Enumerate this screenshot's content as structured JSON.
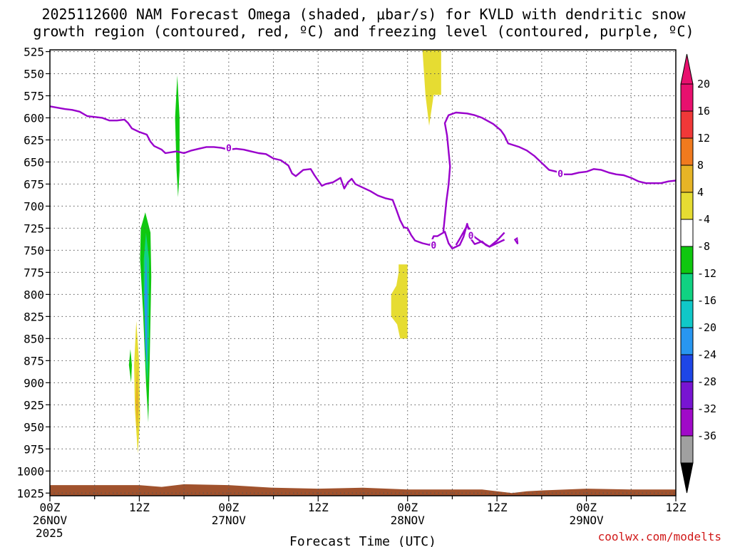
{
  "chart_data": {
    "type": "heatmap",
    "title_line1": "2025112600 NAM Forecast Omega (shaded, μbar/s) for KVLD with dendritic snow",
    "title_line2": "growth region (contoured, red, ºC) and freezing level (contoured, purple, ºC)",
    "xlabel": "Forecast Time (UTC)",
    "credit": "coolwx.com/modelts",
    "x_hours_range": [
      0,
      84
    ],
    "y_range_mb": [
      1028,
      523
    ],
    "y_ticks": [
      {
        "value": 525,
        "label": "525"
      },
      {
        "value": 550,
        "label": "550"
      },
      {
        "value": 575,
        "label": "575"
      },
      {
        "value": 600,
        "label": "600"
      },
      {
        "value": 625,
        "label": "625"
      },
      {
        "value": 650,
        "label": "650"
      },
      {
        "value": 675,
        "label": "675"
      },
      {
        "value": 700,
        "label": "700"
      },
      {
        "value": 725,
        "label": "725"
      },
      {
        "value": 750,
        "label": "750"
      },
      {
        "value": 775,
        "label": "775"
      },
      {
        "value": 800,
        "label": "800"
      },
      {
        "value": 825,
        "label": "825"
      },
      {
        "value": 850,
        "label": "850"
      },
      {
        "value": 875,
        "label": "875"
      },
      {
        "value": 900,
        "label": "900"
      },
      {
        "value": 925,
        "label": "925"
      },
      {
        "value": 950,
        "label": "950"
      },
      {
        "value": 975,
        "label": "975"
      },
      {
        "value": 1000,
        "label": "1000"
      },
      {
        "value": 1025,
        "label": "1025"
      }
    ],
    "x_ticks": [
      {
        "hour": 0,
        "line1": "00Z",
        "line2": "26NOV",
        "line3": "2025"
      },
      {
        "hour": 12,
        "line1": "12Z"
      },
      {
        "hour": 24,
        "line1": "00Z",
        "line2": "27NOV"
      },
      {
        "hour": 36,
        "line1": "12Z"
      },
      {
        "hour": 48,
        "line1": "00Z",
        "line2": "28NOV"
      },
      {
        "hour": 60,
        "line1": "12Z"
      },
      {
        "hour": 72,
        "line1": "00Z",
        "line2": "29NOV"
      },
      {
        "hour": 84,
        "line1": "12Z"
      }
    ],
    "colorbar": [
      {
        "label": "20",
        "color": "#e8106e"
      },
      {
        "label": "16",
        "color": "#f03838"
      },
      {
        "label": "12",
        "color": "#f07a1e"
      },
      {
        "label": "8",
        "color": "#e6b426"
      },
      {
        "label": "4",
        "color": "#e6dc32"
      },
      {
        "label": "-4",
        "color": "#ffffff"
      },
      {
        "label": "-8",
        "color": "#0fc80f"
      },
      {
        "label": "-12",
        "color": "#10d282"
      },
      {
        "label": "-16",
        "color": "#10c8c8"
      },
      {
        "label": "-20",
        "color": "#2896f0"
      },
      {
        "label": "-24",
        "color": "#1e46e6"
      },
      {
        "label": "-28",
        "color": "#7814d2"
      },
      {
        "label": "-32",
        "color": "#a00ac8"
      },
      {
        "label": "-36",
        "color": "#a0a0a0"
      }
    ],
    "colorbar_bottom_color": "#000000",
    "freezing_level_color": "#9900cc",
    "freezing_level_label": "0",
    "freezing_level_main": [
      [
        0,
        587
      ],
      [
        2,
        590
      ],
      [
        3,
        591
      ],
      [
        4,
        593
      ],
      [
        5,
        598
      ],
      [
        6,
        599
      ],
      [
        7,
        600
      ],
      [
        8,
        603
      ],
      [
        9,
        603
      ],
      [
        10,
        602
      ],
      [
        10.5,
        606
      ],
      [
        11,
        612
      ],
      [
        12,
        616
      ],
      [
        13,
        619
      ],
      [
        13.5,
        627
      ],
      [
        14,
        632
      ],
      [
        15,
        636
      ],
      [
        15.5,
        640
      ],
      [
        17,
        638
      ],
      [
        18,
        640
      ],
      [
        19,
        637
      ],
      [
        20,
        635
      ],
      [
        21,
        633
      ],
      [
        22,
        633
      ],
      [
        23,
        634
      ],
      [
        24,
        636
      ],
      [
        25,
        635
      ],
      [
        26,
        636
      ],
      [
        27,
        638
      ],
      [
        28,
        640
      ],
      [
        29,
        641
      ],
      [
        30,
        646
      ],
      [
        31,
        648
      ],
      [
        32,
        654
      ],
      [
        32.5,
        663
      ],
      [
        33,
        666
      ],
      [
        34,
        659
      ],
      [
        35,
        658
      ],
      [
        35.5,
        665
      ],
      [
        36,
        671
      ],
      [
        36.5,
        677
      ],
      [
        37,
        675
      ],
      [
        38,
        673
      ],
      [
        39,
        668
      ],
      [
        39.5,
        680
      ],
      [
        40,
        673
      ],
      [
        40.5,
        669
      ],
      [
        41,
        675
      ],
      [
        42,
        679
      ],
      [
        43,
        683
      ],
      [
        44,
        688
      ],
      [
        45,
        691
      ],
      [
        46,
        693
      ],
      [
        46.5,
        704
      ],
      [
        47,
        716
      ],
      [
        47.5,
        724
      ],
      [
        48,
        725
      ],
      [
        48.5,
        733
      ],
      [
        49,
        739
      ],
      [
        50,
        742
      ],
      [
        51,
        744
      ],
      [
        51.5,
        734
      ],
      [
        52,
        734
      ],
      [
        53,
        729
      ],
      [
        53.5,
        742
      ],
      [
        54,
        748
      ],
      [
        55,
        744
      ],
      [
        55.5,
        735
      ],
      [
        56,
        720
      ],
      [
        56.5,
        737
      ],
      [
        57,
        743
      ],
      [
        58,
        740
      ],
      [
        58.5,
        744
      ],
      [
        59,
        746
      ],
      [
        60,
        739
      ],
      [
        61,
        730
      ]
    ],
    "freezing_level_upper": [
      [
        52.8,
        729
      ],
      [
        53.2,
        695
      ],
      [
        53.5,
        676
      ],
      [
        53.7,
        655
      ],
      [
        53.3,
        620
      ],
      [
        53,
        606
      ],
      [
        53.5,
        597
      ],
      [
        54.5,
        594
      ],
      [
        56,
        595
      ],
      [
        57,
        597
      ],
      [
        58,
        600
      ],
      [
        59.5,
        607
      ],
      [
        60.5,
        614
      ],
      [
        61,
        620
      ],
      [
        61.5,
        629
      ],
      [
        63,
        633
      ],
      [
        64,
        637
      ],
      [
        65,
        643
      ],
      [
        66,
        651
      ],
      [
        67,
        659
      ],
      [
        68,
        661
      ],
      [
        69,
        664
      ],
      [
        70,
        664
      ],
      [
        71,
        662
      ],
      [
        72,
        661
      ],
      [
        73,
        658
      ],
      [
        74,
        659
      ],
      [
        75,
        662
      ],
      [
        76,
        664
      ],
      [
        77,
        665
      ],
      [
        78,
        668
      ],
      [
        79,
        672
      ],
      [
        80,
        674
      ],
      [
        81,
        674
      ],
      [
        82,
        674
      ],
      [
        83,
        672
      ],
      [
        84,
        671
      ]
    ],
    "freezing_level_branch": [
      [
        54.5,
        744
      ],
      [
        55,
        737
      ],
      [
        56,
        722
      ],
      [
        57,
        735
      ],
      [
        58,
        741
      ],
      [
        59,
        746
      ],
      [
        61,
        738
      ]
    ],
    "freezing_level_label_points": [
      [
        24,
        634
      ],
      [
        51.5,
        744
      ],
      [
        56.5,
        733
      ],
      [
        68.5,
        663
      ]
    ],
    "omega_regions": [
      {
        "color": "#e6dc32",
        "polygon": [
          [
            50.3,
            523
          ],
          [
            52.5,
            523
          ],
          [
            52.5,
            574
          ],
          [
            51.5,
            574
          ],
          [
            50.9,
            609
          ],
          [
            50.4,
            574
          ],
          [
            50,
            523
          ]
        ]
      },
      {
        "color": "#e6dc32",
        "polygon": [
          [
            46.8,
            766
          ],
          [
            48,
            766
          ],
          [
            48,
            850
          ],
          [
            47,
            850
          ],
          [
            46.6,
            834
          ],
          [
            45.8,
            825
          ],
          [
            45.8,
            800
          ],
          [
            46.5,
            790
          ],
          [
            46.8,
            775
          ]
        ]
      },
      {
        "color": "#0fc80f",
        "polygon": [
          [
            17.1,
            552
          ],
          [
            17.4,
            600
          ],
          [
            17.4,
            660
          ],
          [
            17.2,
            690
          ],
          [
            17,
            660
          ],
          [
            16.8,
            600
          ]
        ]
      },
      {
        "color": "#0fc80f",
        "polygon": [
          [
            12.8,
            707
          ],
          [
            13.5,
            730
          ],
          [
            13.6,
            780
          ],
          [
            13.4,
            870
          ],
          [
            13.2,
            945
          ],
          [
            12.9,
            900
          ],
          [
            12.5,
            820
          ],
          [
            12.1,
            760
          ],
          [
            12.2,
            725
          ]
        ]
      },
      {
        "color": "#10d282",
        "polygon": [
          [
            12.9,
            730
          ],
          [
            13.3,
            760
          ],
          [
            13.3,
            850
          ],
          [
            13.1,
            900
          ],
          [
            12.9,
            880
          ],
          [
            12.6,
            800
          ],
          [
            12.6,
            760
          ]
        ]
      },
      {
        "color": "#2896f0",
        "polygon": [
          [
            12.9,
            752
          ],
          [
            13.1,
            800
          ],
          [
            13,
            880
          ],
          [
            12.8,
            860
          ],
          [
            12.7,
            800
          ]
        ]
      },
      {
        "color": "#e6dc32",
        "polygon": [
          [
            11.6,
            830
          ],
          [
            12,
            880
          ],
          [
            12.1,
            940
          ],
          [
            11.8,
            980
          ],
          [
            11.4,
            930
          ],
          [
            11.3,
            880
          ]
        ]
      },
      {
        "color": "#e6b426",
        "polygon": [
          [
            11.7,
            880
          ],
          [
            11.9,
            925
          ],
          [
            11.7,
            955
          ],
          [
            11.5,
            920
          ]
        ]
      },
      {
        "color": "#0fc80f",
        "polygon": [
          [
            10.8,
            862
          ],
          [
            11,
            880
          ],
          [
            10.9,
            900
          ],
          [
            10.6,
            880
          ]
        ]
      }
    ],
    "terrain_color": "#a0522d",
    "terrain": [
      [
        0,
        1016
      ],
      [
        6,
        1016
      ],
      [
        12,
        1016
      ],
      [
        15,
        1018
      ],
      [
        18,
        1015
      ],
      [
        24,
        1016
      ],
      [
        30,
        1019
      ],
      [
        36,
        1020
      ],
      [
        42,
        1019
      ],
      [
        48,
        1021
      ],
      [
        54,
        1021
      ],
      [
        58,
        1021
      ],
      [
        60,
        1023
      ],
      [
        62,
        1025
      ],
      [
        64,
        1023
      ],
      [
        66,
        1022
      ],
      [
        72,
        1020
      ],
      [
        78,
        1021
      ],
      [
        84,
        1021
      ]
    ]
  }
}
